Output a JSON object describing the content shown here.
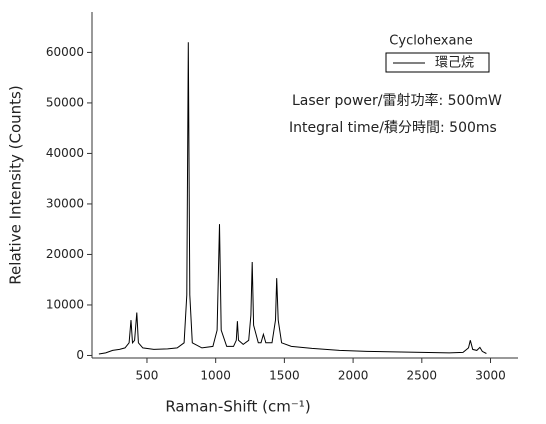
{
  "chart_data": {
    "type": "line",
    "x_label": "Raman-Shift (cm⁻¹)",
    "y_label": "Relative Intensity (Counts)",
    "legend_title": "Cyclohexane",
    "annotations": [
      "Laser power/雷射功率: 500mW",
      "Integral time/積分時間: 500ms"
    ],
    "x": [
      150,
      200,
      250,
      300,
      340,
      370,
      384,
      395,
      410,
      426,
      438,
      470,
      550,
      650,
      720,
      770,
      790,
      801,
      812,
      830,
      900,
      980,
      1010,
      1028,
      1040,
      1080,
      1130,
      1150,
      1158,
      1166,
      1200,
      1240,
      1256,
      1266,
      1276,
      1310,
      1330,
      1347,
      1365,
      1410,
      1435,
      1444,
      1455,
      1480,
      1550,
      1700,
      1900,
      2100,
      2300,
      2500,
      2700,
      2800,
      2840,
      2853,
      2870,
      2900,
      2923,
      2940,
      2970
    ],
    "series": [
      {
        "name": "環己烷",
        "color": "#000000",
        "values": [
          300,
          500,
          1000,
          1200,
          1500,
          2500,
          7000,
          2500,
          3000,
          8500,
          2500,
          1500,
          1200,
          1300,
          1500,
          2500,
          12000,
          62000,
          12000,
          2500,
          1500,
          1800,
          5000,
          26000,
          5000,
          1800,
          1800,
          3000,
          6800,
          3000,
          2200,
          3000,
          8000,
          18500,
          6000,
          2500,
          2500,
          4200,
          2500,
          2500,
          7000,
          15300,
          7000,
          2500,
          1800,
          1400,
          1000,
          800,
          700,
          600,
          500,
          600,
          1500,
          3000,
          1200,
          1000,
          1600,
          800,
          400
        ]
      }
    ],
    "xlim": [
      100,
      3200
    ],
    "ylim": [
      -500,
      68000
    ],
    "xticks": [
      500,
      1000,
      1500,
      2000,
      2500,
      3000
    ],
    "yticks": [
      0,
      10000,
      20000,
      30000,
      40000,
      50000,
      60000
    ]
  }
}
